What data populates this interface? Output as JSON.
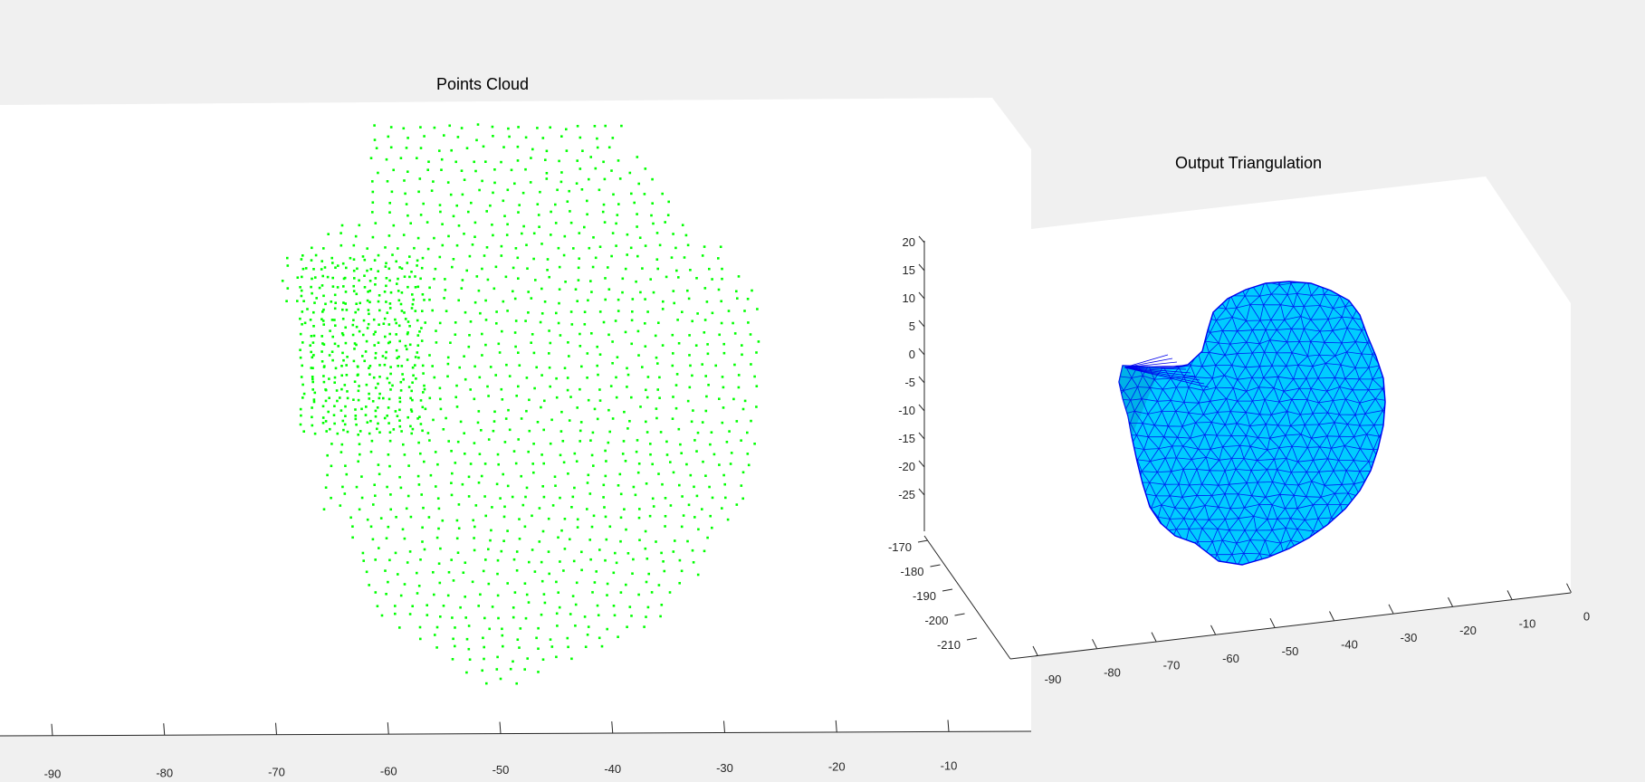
{
  "figure_background": "#f0f0f0",
  "chart_data": [
    {
      "type": "scatter",
      "title": "Points Cloud",
      "marker_color": "#00ff00",
      "x_ticks": [
        "-90",
        "-80",
        "-70",
        "-60",
        "-50",
        "-40",
        "-30",
        "-20",
        "-10"
      ],
      "xlim": [
        -95,
        -5
      ],
      "grid": false
    },
    {
      "type": "surface",
      "title": "Output Triangulation",
      "face_color": "#00ccff",
      "edge_color": "#0000ee",
      "x_ticks": [
        "-90",
        "-80",
        "-70",
        "-60",
        "-50",
        "-40",
        "-30",
        "-20",
        "-10",
        "0"
      ],
      "y_ticks": [
        "-170",
        "-180",
        "-190",
        "-200",
        "-210"
      ],
      "z_ticks": [
        "20",
        "15",
        "10",
        "5",
        "0",
        "-5",
        "-10",
        "-15",
        "-20",
        "-25"
      ],
      "xlim": [
        -90,
        0
      ],
      "ylim": [
        -215,
        -170
      ],
      "zlim": [
        -30,
        20
      ],
      "grid": false
    }
  ]
}
